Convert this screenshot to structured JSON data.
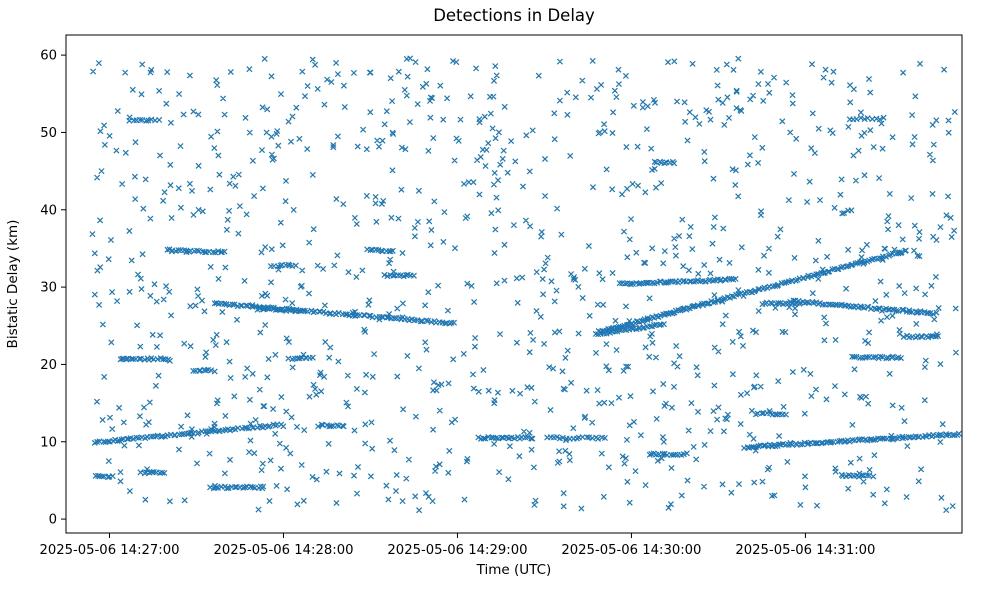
{
  "figure": {
    "background": "#ffffff"
  },
  "chart_data": {
    "type": "scatter",
    "title": "Detections in Delay",
    "xlabel": "Time (UTC)",
    "ylabel": "Bistatic Delay (km)",
    "marker": "x",
    "marker_color": "#1f77b4",
    "x_ticks": [
      "2025-05-06 14:27:00",
      "2025-05-06 14:28:00",
      "2025-05-06 14:29:00",
      "2025-05-06 14:30:00",
      "2025-05-06 14:31:00"
    ],
    "x_tick_seconds": [
      15,
      75,
      135,
      195,
      255
    ],
    "x_domain_seconds": [
      0,
      309
    ],
    "x_domain_start_utc": "2025-05-06 14:26:45",
    "y_ticks": [
      0,
      10,
      20,
      30,
      40,
      50,
      60
    ],
    "y_domain": [
      -1.8,
      62.6
    ],
    "ylim_ticks": [
      0,
      60
    ],
    "grid": false,
    "legend": "none",
    "noise": {
      "count": 1050,
      "seed": 20250506,
      "t_min": 9,
      "t_max": 307,
      "d_min": 1.0,
      "d_max": 59.6
    },
    "track_jitter": {
      "t": 0.35,
      "d": 0.12
    },
    "tracks": [
      {
        "t0": 10,
        "d0": 9.9,
        "t1": 74,
        "d1": 12.2,
        "step": 0.9
      },
      {
        "t0": 51,
        "d0": 27.9,
        "t1": 134,
        "d1": 25.3,
        "step": 0.9
      },
      {
        "t0": 183,
        "d0": 23.9,
        "t1": 206,
        "d1": 25.2,
        "step": 0.8
      },
      {
        "t0": 184,
        "d0": 24.2,
        "t1": 225,
        "d1": 28.3,
        "step": 0.6
      },
      {
        "t0": 225,
        "d0": 28.3,
        "t1": 290,
        "d1": 34.7,
        "step": 0.8
      },
      {
        "t0": 191,
        "d0": 30.4,
        "t1": 231,
        "d1": 31.0,
        "step": 0.8
      },
      {
        "t0": 250,
        "d0": 28.2,
        "t1": 300,
        "d1": 26.6,
        "step": 0.8
      },
      {
        "t0": 240,
        "d0": 27.9,
        "t1": 253,
        "d1": 27.8,
        "step": 0.9
      },
      {
        "t0": 234,
        "d0": 9.3,
        "t1": 308,
        "d1": 11.0,
        "step": 0.8
      },
      {
        "t0": 19,
        "d0": 20.7,
        "t1": 35,
        "d1": 20.7,
        "step": 0.9
      },
      {
        "t0": 77,
        "d0": 20.8,
        "t1": 85,
        "d1": 20.8,
        "step": 0.9
      },
      {
        "t0": 271,
        "d0": 20.9,
        "t1": 288,
        "d1": 20.9,
        "step": 0.9
      },
      {
        "t0": 289,
        "d0": 23.6,
        "t1": 301,
        "d1": 23.6,
        "step": 0.9
      },
      {
        "t0": 35,
        "d0": 34.8,
        "t1": 55,
        "d1": 34.5,
        "step": 0.9
      },
      {
        "t0": 71,
        "d0": 32.8,
        "t1": 79,
        "d1": 32.8,
        "step": 0.9
      },
      {
        "t0": 44,
        "d0": 19.2,
        "t1": 51,
        "d1": 19.2,
        "step": 0.9
      },
      {
        "t0": 104,
        "d0": 34.9,
        "t1": 113,
        "d1": 34.6,
        "step": 0.9
      },
      {
        "t0": 110,
        "d0": 31.5,
        "t1": 120,
        "d1": 31.5,
        "step": 0.9
      },
      {
        "t0": 66,
        "d0": 27.2,
        "t1": 82,
        "d1": 26.9,
        "step": 0.9
      },
      {
        "t0": 142,
        "d0": 10.5,
        "t1": 161,
        "d1": 10.5,
        "step": 0.9
      },
      {
        "t0": 166,
        "d0": 10.5,
        "t1": 186,
        "d1": 10.5,
        "step": 1.1
      },
      {
        "t0": 201,
        "d0": 8.4,
        "t1": 214,
        "d1": 8.4,
        "step": 0.9
      },
      {
        "t0": 238,
        "d0": 13.6,
        "t1": 248,
        "d1": 13.6,
        "step": 0.9
      },
      {
        "t0": 87,
        "d0": 12.1,
        "t1": 96,
        "d1": 12.1,
        "step": 0.9
      },
      {
        "t0": 10,
        "d0": 5.5,
        "t1": 16,
        "d1": 5.5,
        "step": 0.9
      },
      {
        "t0": 203,
        "d0": 46.1,
        "t1": 210,
        "d1": 46.1,
        "step": 0.9
      },
      {
        "t0": 22,
        "d0": 51.6,
        "t1": 32,
        "d1": 51.6,
        "step": 1.1
      },
      {
        "t0": 270,
        "d0": 51.8,
        "t1": 282,
        "d1": 51.8,
        "step": 1.3
      },
      {
        "t0": 50,
        "d0": 4.1,
        "t1": 68,
        "d1": 4.1,
        "step": 0.9
      },
      {
        "t0": 26,
        "d0": 6.0,
        "t1": 34,
        "d1": 6.0,
        "step": 0.9
      },
      {
        "t0": 268,
        "d0": 5.6,
        "t1": 277,
        "d1": 5.6,
        "step": 0.9
      }
    ]
  }
}
